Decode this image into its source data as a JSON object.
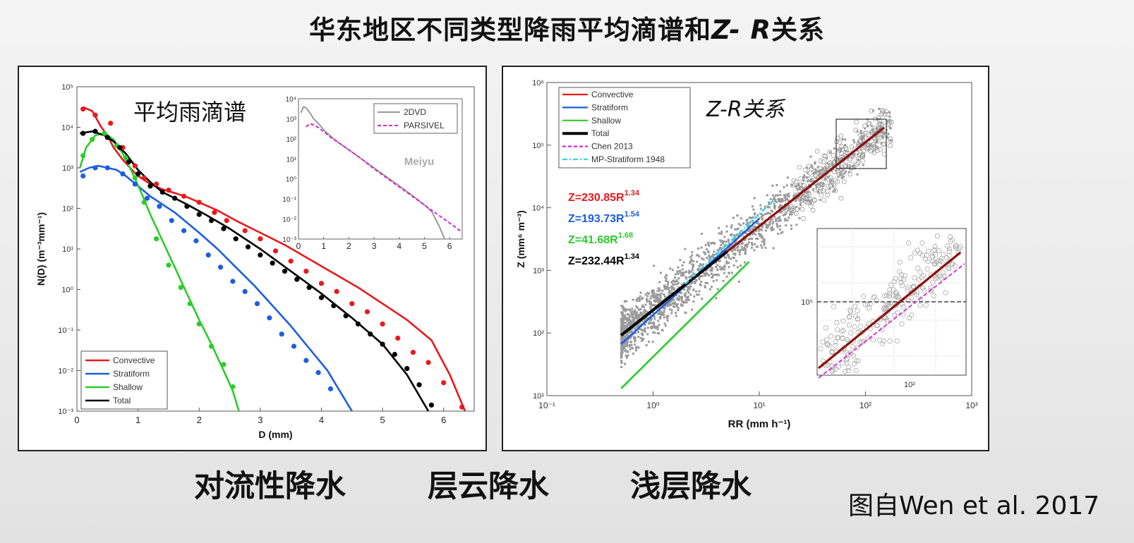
{
  "slide": {
    "title_main": "华东地区不同类型降雨平均滴谱和",
    "title_z": "Z-",
    "title_r": " R",
    "title_end": "关系",
    "captions": [
      "对流性降水",
      "层云降水",
      "浅层降水"
    ],
    "credit": "图自Wen et al. 2017"
  },
  "colors": {
    "convective": "#e8191c",
    "stratiform": "#1b5ee0",
    "shallow": "#2bcc2b",
    "total": "#000000",
    "parsivel": "#d42ad4",
    "dvd": "#999999",
    "mp": "#33d6e6",
    "scatter": "#9a9a9a",
    "fit_dark": "#8b1010"
  },
  "chart_data": [
    {
      "type": "line",
      "title": "平均雨滴谱",
      "xlabel": "D (mm)",
      "ylabel": "N(D) (m⁻³mm⁻¹)",
      "xlim": [
        0,
        6.5
      ],
      "ylim_log10": [
        -3,
        5
      ],
      "x_ticks": [
        "0",
        "1",
        "2",
        "3",
        "4",
        "5",
        "6"
      ],
      "y_ticks": [
        "10⁻³",
        "10⁻²",
        "10⁻¹",
        "10⁰",
        "10¹",
        "10²",
        "10³",
        "10⁴",
        "10⁵"
      ],
      "y_scale": "log",
      "legend_position": "bottom-left",
      "series": [
        {
          "name": "Convective",
          "color_key": "convective",
          "x": [
            0.1,
            0.25,
            0.4,
            0.5,
            0.6,
            0.75,
            0.9,
            1.0,
            1.2,
            1.4,
            1.6,
            1.8,
            2.0,
            2.3,
            2.6,
            3.0,
            3.4,
            3.8,
            4.2,
            4.6,
            5.0,
            5.4,
            5.8,
            6.1,
            6.35
          ],
          "y": [
            4.5,
            4.4,
            4.0,
            3.8,
            3.5,
            3.2,
            2.95,
            2.8,
            2.6,
            2.47,
            2.38,
            2.28,
            2.15,
            1.95,
            1.7,
            1.4,
            1.1,
            0.75,
            0.4,
            0.05,
            -0.35,
            -0.75,
            -1.25,
            -2.1,
            -3.0
          ]
        },
        {
          "name": "Stratiform",
          "color_key": "stratiform",
          "x": [
            0.05,
            0.2,
            0.35,
            0.5,
            0.65,
            0.8,
            1.0,
            1.2,
            1.4,
            1.6,
            1.8,
            2.0,
            2.3,
            2.6,
            2.9,
            3.2,
            3.5,
            3.8,
            4.1,
            4.3,
            4.5
          ],
          "y": [
            2.9,
            3.0,
            3.05,
            3.0,
            2.95,
            2.8,
            2.55,
            2.3,
            2.1,
            1.9,
            1.65,
            1.4,
            1.0,
            0.55,
            0.1,
            -0.4,
            -0.9,
            -1.45,
            -2.0,
            -2.5,
            -3.0
          ]
        },
        {
          "name": "Shallow",
          "color_key": "shallow",
          "x": [
            0.05,
            0.15,
            0.3,
            0.45,
            0.6,
            0.75,
            0.9,
            1.05,
            1.2,
            1.4,
            1.6,
            1.8,
            2.0,
            2.2,
            2.4,
            2.55,
            2.65
          ],
          "y": [
            3.0,
            3.5,
            3.8,
            3.85,
            3.7,
            3.35,
            2.9,
            2.4,
            1.85,
            1.2,
            0.55,
            -0.1,
            -0.75,
            -1.35,
            -2.0,
            -2.5,
            -3.0
          ]
        },
        {
          "name": "Total",
          "color_key": "total",
          "x": [
            0.05,
            0.25,
            0.45,
            0.6,
            0.8,
            1.0,
            1.2,
            1.4,
            1.6,
            1.8,
            2.1,
            2.5,
            3.0,
            3.5,
            4.0,
            4.5,
            5.0,
            5.4,
            5.75
          ],
          "y": [
            3.85,
            3.9,
            3.8,
            3.65,
            3.35,
            2.95,
            2.65,
            2.4,
            2.25,
            2.1,
            1.85,
            1.5,
            1.0,
            0.45,
            -0.1,
            -0.7,
            -1.35,
            -2.1,
            -3.0
          ]
        }
      ],
      "markers": [
        {
          "color_key": "convective",
          "x": [
            0.1,
            0.3,
            0.55,
            0.75,
            0.95,
            1.1,
            1.3,
            1.5,
            1.75,
            2.0,
            2.25,
            2.45,
            2.75,
            3.0,
            3.25,
            3.5,
            3.75,
            4.0,
            4.25,
            4.5,
            4.75,
            5.0,
            5.25,
            5.5,
            5.75,
            6.0,
            6.3
          ],
          "y": [
            4.45,
            4.3,
            4.1,
            3.5,
            3.05,
            2.75,
            2.6,
            2.45,
            2.3,
            2.15,
            1.9,
            1.7,
            1.45,
            1.25,
            0.95,
            0.7,
            0.45,
            0.15,
            -0.05,
            -0.35,
            -0.55,
            -0.85,
            -1.2,
            -1.55,
            -1.8,
            -2.3,
            -2.9
          ]
        },
        {
          "color_key": "stratiform",
          "x": [
            0.1,
            0.3,
            0.5,
            0.75,
            0.95,
            1.15,
            1.35,
            1.55,
            1.75,
            1.95,
            2.15,
            2.35,
            2.55,
            2.75,
            2.95,
            3.15,
            3.35,
            3.55,
            3.75,
            3.95,
            4.15
          ],
          "y": [
            2.8,
            3.0,
            3.0,
            2.85,
            2.6,
            2.25,
            2.05,
            1.7,
            1.45,
            1.2,
            0.85,
            0.55,
            0.2,
            -0.05,
            -0.35,
            -0.7,
            -1.1,
            -1.4,
            -1.75,
            -2.05,
            -2.45
          ]
        },
        {
          "color_key": "shallow",
          "x": [
            0.1,
            0.25,
            0.45,
            0.65,
            0.8,
            0.95,
            1.1,
            1.3,
            1.5,
            1.7,
            1.85,
            2.0,
            2.2,
            2.4,
            2.55
          ],
          "y": [
            3.3,
            3.7,
            3.85,
            3.55,
            3.25,
            2.75,
            2.15,
            1.25,
            0.6,
            0.05,
            -0.35,
            -0.85,
            -1.4,
            -1.85,
            -2.4
          ]
        },
        {
          "color_key": "total",
          "x": [
            0.1,
            0.3,
            0.5,
            0.7,
            0.85,
            1.0,
            1.2,
            1.4,
            1.6,
            1.8,
            2.0,
            2.2,
            2.4,
            2.6,
            2.8,
            3.0,
            3.2,
            3.4,
            3.6,
            3.8,
            4.0,
            4.2,
            4.4,
            4.6,
            4.8,
            5.0,
            5.2,
            5.4,
            5.6,
            5.8
          ],
          "y": [
            3.85,
            3.9,
            3.75,
            3.5,
            3.15,
            2.85,
            2.55,
            2.4,
            2.25,
            2.05,
            1.85,
            1.7,
            1.5,
            1.25,
            1.05,
            0.85,
            0.65,
            0.45,
            0.25,
            0.05,
            -0.2,
            -0.4,
            -0.65,
            -0.85,
            -1.1,
            -1.35,
            -1.6,
            -1.95,
            -2.35,
            -2.85
          ]
        }
      ]
    },
    {
      "type": "line",
      "title": "Meiyu",
      "xlim": [
        0,
        6.5
      ],
      "ylim_log10": [
        -3,
        4
      ],
      "x_ticks": [
        "0",
        "1",
        "2",
        "3",
        "4",
        "5",
        "6"
      ],
      "y_ticks": [
        "10⁻³",
        "10⁻²",
        "10⁻¹",
        "10⁰",
        "10¹",
        "10²",
        "10³",
        "10⁴"
      ],
      "y_scale": "log",
      "legend_position": "top-right",
      "series": [
        {
          "name": "2DVD",
          "color_key": "dvd",
          "x": [
            0.1,
            0.2,
            0.3,
            0.45,
            0.6,
            0.8,
            1.0,
            1.3,
            1.6,
            2.0,
            2.5,
            3.0,
            3.5,
            4.0,
            4.5,
            5.0,
            5.3,
            5.6,
            5.8
          ],
          "y": [
            3.3,
            3.6,
            3.55,
            3.3,
            3.0,
            2.75,
            2.45,
            2.1,
            1.8,
            1.45,
            1.0,
            0.55,
            0.1,
            -0.35,
            -0.8,
            -1.3,
            -1.65,
            -2.4,
            -3.0
          ]
        },
        {
          "name": "PARSIVEL",
          "color_key": "parsivel",
          "dashed": true,
          "x": [
            0.3,
            0.45,
            0.6,
            0.8,
            1.0,
            1.3,
            1.6,
            2.0,
            2.5,
            3.0,
            3.5,
            4.0,
            4.5,
            5.0,
            5.5,
            6.0,
            6.5
          ],
          "y": [
            2.6,
            2.75,
            2.7,
            2.55,
            2.35,
            2.05,
            1.8,
            1.45,
            1.0,
            0.5,
            0.05,
            -0.4,
            -0.85,
            -1.3,
            -1.75,
            -2.2,
            -2.65
          ]
        }
      ]
    },
    {
      "type": "scatter",
      "title": "Z-R关系",
      "xlabel": "RR (mm h⁻¹)",
      "ylabel": "Z (mm⁶ m⁻³)",
      "x_scale": "log",
      "y_scale": "log",
      "xlim_log10": [
        -1,
        3
      ],
      "ylim_log10": [
        1,
        6
      ],
      "x_ticks": [
        "10⁻¹",
        "10⁰",
        "10¹",
        "10²",
        "10³"
      ],
      "y_ticks": [
        "10¹",
        "10²",
        "10³",
        "10⁴",
        "10⁵",
        "10⁶"
      ],
      "legend_position": "top-left",
      "legend": [
        {
          "name": "Convective",
          "color_key": "convective",
          "style": "solid"
        },
        {
          "name": "Stratiform",
          "color_key": "stratiform",
          "style": "solid"
        },
        {
          "name": "Shallow",
          "color_key": "shallow",
          "style": "solid"
        },
        {
          "name": "Total",
          "color_key": "total",
          "style": "thick"
        },
        {
          "name": "Chen 2013",
          "color_key": "parsivel",
          "style": "dashed"
        },
        {
          "name": "MP-Stratiform 1948",
          "color_key": "mp",
          "style": "dashdot"
        }
      ],
      "fits": [
        {
          "a": 230.85,
          "b": 1.34,
          "rmin": 1.0,
          "rmax": 150,
          "color_key": "convective"
        },
        {
          "a": 193.73,
          "b": 1.54,
          "rmin": 0.5,
          "rmax": 10,
          "color_key": "stratiform"
        },
        {
          "a": 41.68,
          "b": 1.68,
          "rmin": 0.5,
          "rmax": 8,
          "color_key": "shallow"
        },
        {
          "a": 232.44,
          "b": 1.34,
          "rmin": 0.5,
          "rmax": 5,
          "color_key": "total"
        },
        {
          "a": 200,
          "b": 1.6,
          "rmin": 2,
          "rmax": 14,
          "color_key": "mp"
        }
      ],
      "equations": [
        {
          "text": "Z=230.85R",
          "sup": "1.34",
          "color_key": "convective"
        },
        {
          "text": "Z=193.73R",
          "sup": "1.54",
          "color_key": "stratiform"
        },
        {
          "text": "Z=41.68R",
          "sup": "1.68",
          "color_key": "shallow"
        },
        {
          "text": "Z=232.44R",
          "sup": "1.34",
          "color_key": "total"
        }
      ],
      "inset_tick_y": "10⁵",
      "inset_tick_x": "10²"
    }
  ]
}
